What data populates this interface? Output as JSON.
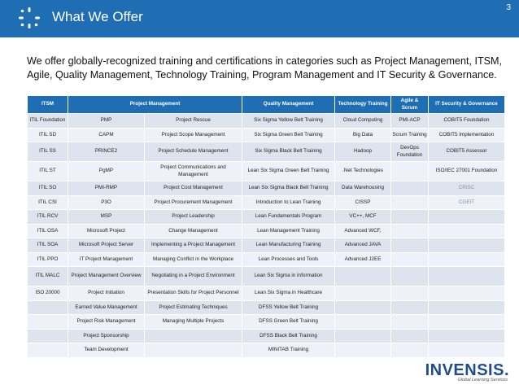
{
  "header": {
    "title": "What We Offer",
    "page_number": "3",
    "logo_icon": "spinner-dots-icon"
  },
  "intro": "We offer globally-recognized training and certifications in categories such as Project Management, ITSM, Agile, Quality Management, Technology Training, Program Management and IT Security & Governance.",
  "table": {
    "columns": [
      "ITSM",
      "Project Management",
      "",
      "Quality Management",
      "Technology Training",
      "Agile & Scrum",
      "IT Security & Governance"
    ],
    "rows": [
      [
        "ITIL Foundation",
        "PMP",
        "Project Rescue",
        "Six Sigma Yellow Belt Training",
        "Cloud Computing",
        "PMI-ACP",
        "COBIT5 Foundation"
      ],
      [
        "ITIL SD",
        "CAPM",
        "Project Scope Management",
        "Six Sigma Green Belt Training",
        "Big Data",
        "Scrum Training",
        "COBIT5 Implementation"
      ],
      [
        "ITIL SS",
        "PRINCE2",
        "Project Schedule Management",
        "Six Sigma Black Belt Training",
        "Hadoop",
        "DevOps Foundation",
        "COBIT5 Assessor"
      ],
      [
        "ITIL ST",
        "PgMP",
        "Project Communications and Management",
        "Lean Six Sigma Green Belt Training",
        ".Net Technologies",
        "",
        "ISO/IEC 27001 Foundation"
      ],
      [
        "ITIL SO",
        "PMI-RMP",
        "Project Cost Management",
        "Lean Six Sigma Black Belt Training",
        "Data Warehousing",
        "",
        "CRISC"
      ],
      [
        "ITIL CSI",
        "P3O",
        "Project Procurement Management",
        "Introduction to Lean Training",
        "CISSP",
        "",
        "CGEIT"
      ],
      [
        "ITIL RCV",
        "MSP",
        "Project Leadership",
        "Lean Fundamentals Program",
        "VC++, MCF",
        "",
        ""
      ],
      [
        "ITIL OSA",
        "Microsoft Project",
        "Change Management",
        "Lean Management Training",
        "Advanced WCF,",
        "",
        ""
      ],
      [
        "ITIL SOA",
        "Microsoft Project Server",
        "Implementing a Project Management",
        "Lean Manufacturing Training",
        "Advanced JAVA",
        "",
        ""
      ],
      [
        "ITIL PPO",
        "IT Project Management",
        "Managing Conflict in the Workplace",
        "Lean Processes and Tools",
        "Advanced J2EE",
        "",
        ""
      ],
      [
        "ITIL MALC",
        "Project Management Overview",
        "Negotiating in a Project Environment",
        "Lean Six Sigma in Information",
        "",
        "",
        ""
      ],
      [
        "ISO 20000",
        "Project Initiation",
        "Presentation Skills for Project Personnel",
        "Lean Six Sigma in Healthcare",
        "",
        "",
        ""
      ],
      [
        "",
        "Earned Value Management",
        "Project Estimating Techniques",
        "DFSS Yellow Belt Training",
        "",
        "",
        ""
      ],
      [
        "",
        "Project Risk Management",
        "Managing Multiple Projects",
        "DFSS Green Belt Training",
        "",
        "",
        ""
      ],
      [
        "",
        "Project Sponsorship",
        "",
        "DFSS Black Belt Training",
        "",
        "",
        ""
      ],
      [
        "",
        "Team Development",
        "",
        "MINITAB Training",
        "",
        "",
        ""
      ]
    ]
  },
  "brand": {
    "name": "INVENSIS.",
    "tagline": "Global Learning Services",
    "color": "#1f4e8c"
  },
  "colors": {
    "header_bg": "#1f6db3",
    "row_odd": "#dde4ee",
    "row_even": "#eef1f7"
  }
}
